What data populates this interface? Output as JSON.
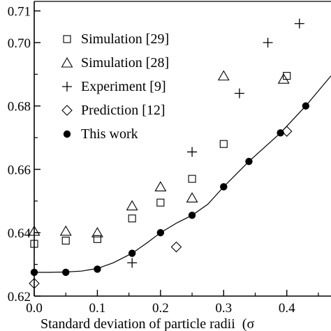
{
  "chart_data": {
    "type": "scatter",
    "title": "",
    "xlabel": "Standard deviation of particle radii  (σ",
    "ylabel": "",
    "xlim": [
      0.0,
      0.47
    ],
    "ylim": [
      0.62,
      0.713
    ],
    "x_ticks": [
      0.0,
      0.1,
      0.2,
      0.3,
      0.4
    ],
    "x_tick_labels": [
      "0.0",
      "0.1",
      "0.2",
      "0.3",
      "0.4"
    ],
    "y_ticks": [
      0.62,
      0.64,
      0.66,
      0.68,
      0.7,
      0.71
    ],
    "y_tick_labels": [
      "0.62",
      "0.64",
      "0.66",
      "0.68",
      "0.70",
      "0.71"
    ],
    "grid": false,
    "legend_position": "top-left",
    "series": [
      {
        "name": "Simulation [29]",
        "marker": "square",
        "x": [
          0.0,
          0.05,
          0.1,
          0.155,
          0.2,
          0.25,
          0.3,
          0.4
        ],
        "y": [
          0.6365,
          0.6375,
          0.638,
          0.6445,
          0.6495,
          0.657,
          0.668,
          0.6895
        ]
      },
      {
        "name": "Simulation [28]",
        "marker": "triangle",
        "x": [
          0.0,
          0.05,
          0.1,
          0.155,
          0.2,
          0.25,
          0.3,
          0.395
        ],
        "y": [
          0.6405,
          0.6405,
          0.64,
          0.6485,
          0.6545,
          0.651,
          0.6895,
          0.6885
        ]
      },
      {
        "name": "Experiment [9]",
        "marker": "plus",
        "x": [
          0.155,
          0.25,
          0.325,
          0.37,
          0.42
        ],
        "y": [
          0.6305,
          0.6655,
          0.684,
          0.7,
          0.706
        ]
      },
      {
        "name": "Prediction [12]",
        "marker": "diamond",
        "x": [
          0.0,
          0.225,
          0.4
        ],
        "y": [
          0.624,
          0.6355,
          0.672
        ]
      },
      {
        "name": "This work",
        "marker": "filled-circle",
        "x": [
          0.0,
          0.05,
          0.1,
          0.155,
          0.2,
          0.25,
          0.3,
          0.34,
          0.39,
          0.43
        ],
        "y": [
          0.6275,
          0.6275,
          0.6285,
          0.6335,
          0.64,
          0.6455,
          0.6545,
          0.6625,
          0.6715,
          0.68
        ],
        "fit_line": {
          "x": [
            0.0,
            0.025,
            0.05,
            0.075,
            0.1,
            0.125,
            0.155,
            0.18,
            0.2,
            0.225,
            0.25,
            0.275,
            0.3,
            0.34,
            0.39,
            0.43,
            0.47
          ],
          "y": [
            0.6275,
            0.6275,
            0.6276,
            0.6279,
            0.6287,
            0.6305,
            0.6335,
            0.637,
            0.64,
            0.643,
            0.6455,
            0.649,
            0.6545,
            0.6625,
            0.6715,
            0.68,
            0.6895
          ]
        }
      }
    ]
  }
}
